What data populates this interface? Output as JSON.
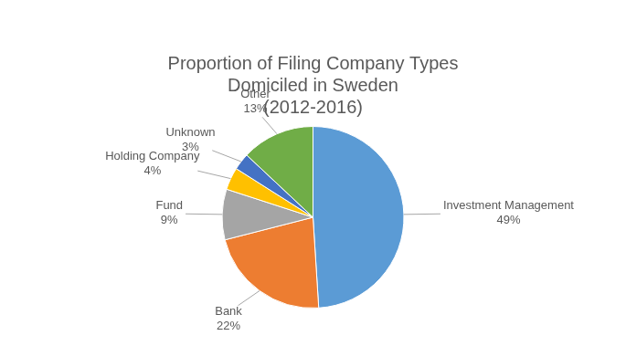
{
  "chart_data": {
    "type": "pie",
    "title": [
      "Proportion of Filing Company Types",
      "Domiciled in Sweden",
      "(2012-2016)"
    ],
    "categories": [
      "Investment Management",
      "Bank",
      "Fund",
      "Holding Company",
      "Unknown",
      "Other"
    ],
    "values": [
      49,
      22,
      9,
      4,
      3,
      13
    ],
    "value_labels": [
      "49%",
      "22%",
      "9%",
      "4%",
      "3%",
      "13%"
    ],
    "colors": [
      "#5b9bd5",
      "#ed7d31",
      "#a5a5a5",
      "#ffc000",
      "#4472c4",
      "#70ad47"
    ],
    "data_labels": true
  }
}
